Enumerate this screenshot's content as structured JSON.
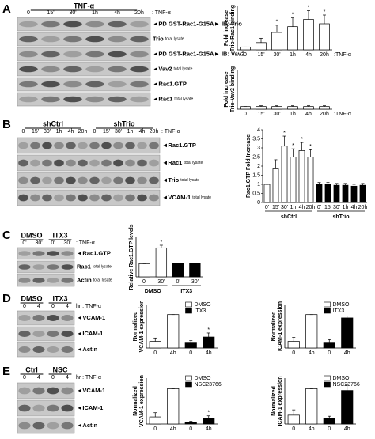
{
  "panels": [
    {
      "letter": "A",
      "blot": {
        "header": [
          "TNF-α"
        ],
        "lanes": [
          "0",
          "15'",
          "30'",
          "1h",
          "4h",
          "20h"
        ],
        "lane_suffix": ": TNF-α",
        "rows": [
          {
            "label": "◄PD GST-Rac1-G15A► IB: Trio"
          },
          {
            "label": "Trio",
            "sub": "total lysate"
          },
          {
            "label": "◄PD GST-Rac1-G15A► IB: Vav2"
          },
          {
            "label": "◄Vav2",
            "sub": "total lysate"
          },
          {
            "label": "◄Rac1.GTP"
          },
          {
            "label": "◄Rac1",
            "sub": "total lysate"
          }
        ]
      },
      "charts": [
        {
          "type": "bar",
          "ylabel": [
            "Fold increase",
            "Trio-Rac1 binding"
          ],
          "categories": [
            "0",
            "15'",
            "30'",
            "1h",
            "4h",
            "20h"
          ],
          "x_suffix": ":TNF-α",
          "values": [
            1,
            2.5,
            6,
            8,
            10.5,
            9
          ],
          "errors": [
            0,
            1.5,
            2.5,
            3,
            3,
            3
          ],
          "annotations": [
            null,
            null,
            "*",
            "*",
            "*",
            "*"
          ],
          "colors": [
            "#ffffff",
            "#ffffff",
            "#ffffff",
            "#ffffff",
            "#ffffff",
            "#ffffff"
          ],
          "ylim": [
            0,
            15
          ]
        },
        {
          "type": "bar",
          "ylabel": [
            "Fold increase",
            "Trio-Vav2 binding"
          ],
          "categories": [
            "0",
            "15'",
            "30'",
            "1h",
            "4h",
            "20h"
          ],
          "x_suffix": ":TNF-α",
          "values": [
            1,
            1,
            1,
            1,
            1,
            1
          ],
          "errors": [
            0,
            0.3,
            0.3,
            0.3,
            0.3,
            0.3
          ],
          "annotations": [
            null,
            null,
            null,
            null,
            null,
            null
          ],
          "colors": [
            "#ffffff",
            "#ffffff",
            "#ffffff",
            "#ffffff",
            "#ffffff",
            "#ffffff"
          ],
          "ylim": [
            0,
            15
          ]
        }
      ]
    },
    {
      "letter": "B",
      "blot": {
        "header": [
          "shCtrl",
          "shTrio"
        ],
        "lanes": [
          "0",
          "15'",
          "30'",
          "1h",
          "4h",
          "20h",
          "0",
          "15'",
          "30'",
          "1h",
          "4h",
          "20h"
        ],
        "lane_suffix": ": TNF-α",
        "rows": [
          {
            "label": "◄Rac1.GTP"
          },
          {
            "label": "◄Rac1",
            "sub": "total lysate"
          },
          {
            "label": "◄Trio",
            "sub": "total lysate"
          },
          {
            "label": "◄VCAM-1",
            "sub": "total lysate"
          }
        ]
      },
      "charts": [
        {
          "type": "bar",
          "ylabel": [
            "Rac1.GTP Fold Increase"
          ],
          "categories": [
            "0'",
            "15'",
            "30'",
            "1h",
            "4h",
            "20h",
            "0'",
            "15'",
            "30'",
            "1h",
            "4h",
            "20h"
          ],
          "groups": [
            "shCtrl",
            "shTrio"
          ],
          "values": [
            1,
            1.85,
            3.1,
            2.5,
            2.85,
            2.5,
            1,
            1,
            0.95,
            0.95,
            0.9,
            0.95
          ],
          "errors": [
            0,
            0.5,
            0.55,
            0.45,
            0.45,
            0.4,
            0.1,
            0.1,
            0.1,
            0.1,
            0.1,
            0.1
          ],
          "annotations": [
            null,
            null,
            "*",
            "*",
            "*",
            "*",
            null,
            null,
            null,
            null,
            null,
            null
          ],
          "colors": [
            "#ffffff",
            "#ffffff",
            "#ffffff",
            "#ffffff",
            "#ffffff",
            "#ffffff",
            "#000000",
            "#000000",
            "#000000",
            "#000000",
            "#000000",
            "#000000"
          ],
          "ylim": [
            0,
            4
          ],
          "yticks": [
            0,
            0.5,
            1,
            1.5,
            2,
            2.5,
            3,
            3.5,
            4
          ]
        }
      ]
    },
    {
      "letter": "C",
      "blot": {
        "header": [
          "DMSO",
          "ITX3"
        ],
        "lanes": [
          "0'",
          "30'",
          "0'",
          "30'"
        ],
        "lane_suffix": ": TNF-α",
        "rows": [
          {
            "label": "◄Rac1.GTP"
          },
          {
            "label": "Rac1",
            "sub": "total lysate"
          },
          {
            "label": "Actin",
            "sub": "total lysate"
          }
        ]
      },
      "charts": [
        {
          "type": "bar",
          "ylabel": [
            "Relative Rac1.GTP levels"
          ],
          "categories": [
            "0'",
            "30'",
            "0'",
            "30'"
          ],
          "groups": [
            "DMSO",
            "ITX3"
          ],
          "values": [
            1,
            2.2,
            1,
            1.05
          ],
          "errors": [
            0,
            0.2,
            0,
            0.3
          ],
          "annotations": [
            null,
            "*",
            null,
            null
          ],
          "colors": [
            "#ffffff",
            "#ffffff",
            "#000000",
            "#000000"
          ],
          "ylim": [
            0,
            3
          ]
        }
      ]
    },
    {
      "letter": "D",
      "blot": {
        "header": [
          "DMSO",
          "ITX3"
        ],
        "lanes": [
          "0",
          "4",
          "0",
          "4"
        ],
        "lane_suffix": "hr : TNF-α",
        "rows": [
          {
            "label": "◄VCAM-1"
          },
          {
            "label": "◄ICAM-1"
          },
          {
            "label": "◄Actin"
          }
        ]
      },
      "charts": [
        {
          "type": "bar",
          "ylabel": [
            "Normalized",
            "VCAM-1 expression"
          ],
          "categories": [
            "0",
            "4h",
            "0",
            "4h"
          ],
          "legend": [
            {
              "name": "DMSO",
              "color": "#ffffff"
            },
            {
              "name": "ITX3",
              "color": "#000000"
            }
          ],
          "values": [
            20,
            100,
            15,
            33
          ],
          "errors": [
            10,
            0,
            7,
            12
          ],
          "annotations": [
            null,
            null,
            null,
            "*"
          ],
          "colors": [
            "#ffffff",
            "#ffffff",
            "#000000",
            "#000000"
          ],
          "ylim": [
            0,
            130
          ]
        },
        {
          "type": "bar",
          "ylabel": [
            "Normalized",
            "ICAM-1 expression"
          ],
          "categories": [
            "0",
            "4h",
            "0",
            "4h"
          ],
          "legend": [
            {
              "name": "DMSO",
              "color": "#ffffff"
            },
            {
              "name": "ITX3",
              "color": "#000000"
            }
          ],
          "values": [
            20,
            100,
            15,
            90
          ],
          "errors": [
            12,
            0,
            10,
            6
          ],
          "annotations": [
            null,
            null,
            null,
            null
          ],
          "colors": [
            "#ffffff",
            "#ffffff",
            "#000000",
            "#000000"
          ],
          "ylim": [
            0,
            130
          ]
        }
      ]
    },
    {
      "letter": "E",
      "blot": {
        "header": [
          "Ctrl",
          "NSC"
        ],
        "lanes": [
          "0",
          "4",
          "0",
          "4"
        ],
        "lane_suffix": "hr : TNF-α",
        "rows": [
          {
            "label": "◄VCAM-1"
          },
          {
            "label": "◄ICAM-1"
          },
          {
            "label": "◄Actin"
          }
        ]
      },
      "charts": [
        {
          "type": "bar",
          "ylabel": [
            "Normalized",
            "VCAM-1 expression"
          ],
          "categories": [
            "0",
            "4h",
            "0",
            "4h"
          ],
          "legend": [
            {
              "name": "DMSO",
              "color": "#ffffff"
            },
            {
              "name": "NSC23766",
              "color": "#000000"
            }
          ],
          "values": [
            20,
            100,
            5,
            15
          ],
          "errors": [
            12,
            0,
            3,
            8
          ],
          "annotations": [
            null,
            null,
            null,
            "*"
          ],
          "colors": [
            "#ffffff",
            "#ffffff",
            "#000000",
            "#000000"
          ],
          "ylim": [
            0,
            130
          ]
        },
        {
          "type": "bar",
          "ylabel": [
            "Normalized",
            "ICAM-1 expression"
          ],
          "categories": [
            "0",
            "4h",
            "0",
            "4h"
          ],
          "legend": [
            {
              "name": "DMSO",
              "color": "#ffffff"
            },
            {
              "name": "NSC23766",
              "color": "#000000"
            }
          ],
          "values": [
            25,
            100,
            15,
            95
          ],
          "errors": [
            15,
            0,
            7,
            15
          ],
          "annotations": [
            null,
            null,
            null,
            null
          ],
          "colors": [
            "#ffffff",
            "#ffffff",
            "#000000",
            "#000000"
          ],
          "ylim": [
            0,
            130
          ]
        }
      ]
    }
  ]
}
